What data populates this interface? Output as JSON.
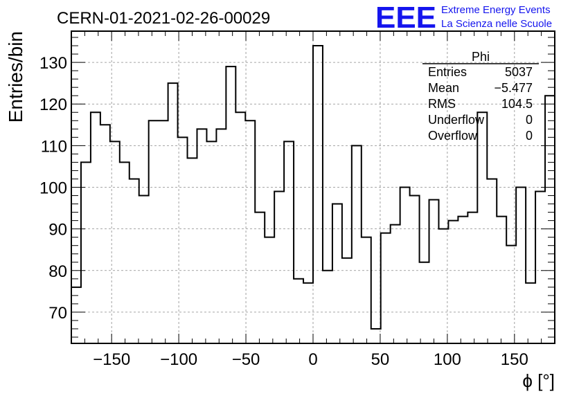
{
  "chart_data": {
    "type": "histogram",
    "title": "CERN-01-2021-02-26-00029",
    "xlabel": "ϕ [°]",
    "ylabel": "Entries/bin",
    "xlim": [
      -180,
      180
    ],
    "ylim": [
      62.5,
      137.5
    ],
    "grid": true,
    "bin_width": 7.2,
    "x_ticks": [
      -150,
      -100,
      -50,
      0,
      50,
      100,
      150
    ],
    "x_tick_labels": [
      "−150",
      "−100",
      "−50",
      "0",
      "50",
      "100",
      "150"
    ],
    "y_ticks": [
      70,
      80,
      90,
      100,
      110,
      120,
      130
    ],
    "y_tick_labels": [
      "70",
      "80",
      "90",
      "100",
      "110",
      "120",
      "130"
    ],
    "bin_low_edges": [
      -180,
      -172.8,
      -165.6,
      -158.4,
      -151.2,
      -144,
      -136.8,
      -129.6,
      -122.4,
      -115.2,
      -108,
      -100.8,
      -93.6,
      -86.4,
      -79.2,
      -72,
      -64.8,
      -57.6,
      -50.4,
      -43.2,
      -36,
      -28.8,
      -21.6,
      -14.4,
      -7.2,
      0,
      7.2,
      14.4,
      21.6,
      28.8,
      36,
      43.2,
      50.4,
      57.6,
      64.8,
      72,
      79.2,
      86.4,
      93.6,
      100.8,
      108,
      115.2,
      122.4,
      129.6,
      136.8,
      144,
      151.2,
      158.4,
      165.6,
      172.8
    ],
    "values": [
      76,
      106,
      118,
      115,
      111,
      106,
      102,
      98,
      116,
      116,
      125,
      112,
      107,
      114,
      111,
      114,
      129,
      118,
      116,
      94,
      88,
      99,
      111,
      78,
      77,
      134,
      80,
      96,
      83,
      110,
      88,
      66,
      89,
      91,
      100,
      98,
      82,
      97,
      90,
      92,
      93,
      94,
      118,
      102,
      93,
      86,
      100,
      77,
      99,
      122
    ],
    "stats_box": {
      "title": "Phi",
      "rows": [
        {
          "label": "Entries",
          "value": "5037"
        },
        {
          "label": "Mean",
          "value": "−5.477"
        },
        {
          "label": "RMS",
          "value": "104.5"
        },
        {
          "label": "Underflow",
          "value": "0"
        },
        {
          "label": "Overflow",
          "value": "0"
        }
      ]
    }
  },
  "logo": {
    "text": "EEE",
    "line1": "Extreme Energy Events",
    "line2": "La Scienza nelle Scuole",
    "color": "#1515ee"
  }
}
